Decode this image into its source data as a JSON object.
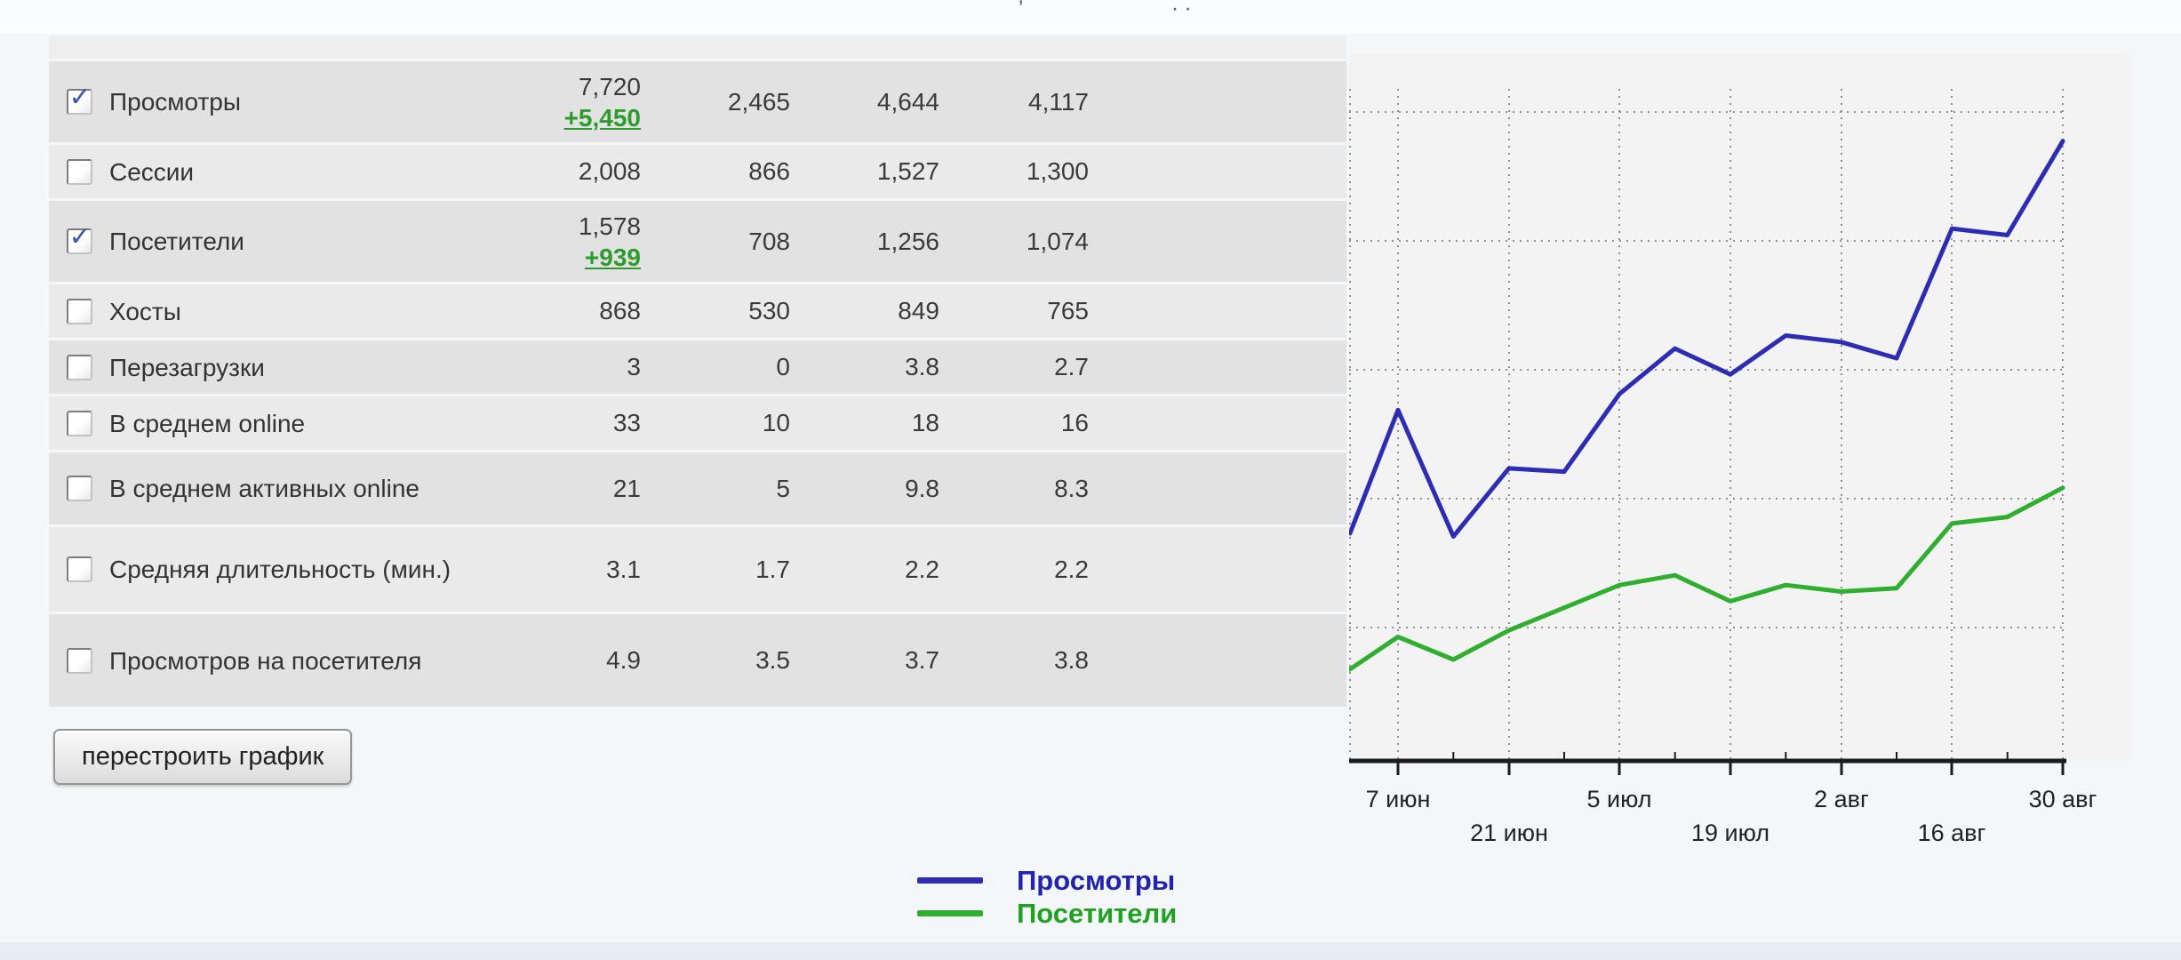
{
  "page": {
    "clipped_header_text_1": "’",
    "clipped_header_text_2": "· ·"
  },
  "ui": {
    "check_glyph": "✓"
  },
  "table": {
    "rows": [
      {
        "label": "Просмотры",
        "checked": true,
        "values": [
          "7,720",
          "2,465",
          "4,644",
          "4,117"
        ],
        "delta": "+5,450"
      },
      {
        "label": "Сессии",
        "checked": false,
        "values": [
          "2,008",
          "866",
          "1,527",
          "1,300"
        ],
        "delta": null
      },
      {
        "label": "Посетители",
        "checked": true,
        "values": [
          "1,578",
          "708",
          "1,256",
          "1,074"
        ],
        "delta": "+939"
      },
      {
        "label": "Хосты",
        "checked": false,
        "values": [
          "868",
          "530",
          "849",
          "765"
        ],
        "delta": null
      },
      {
        "label": "Перезагрузки",
        "checked": false,
        "values": [
          "3",
          "0",
          "3.8",
          "2.7"
        ],
        "delta": null
      },
      {
        "label": "В среднем online",
        "checked": false,
        "values": [
          "33",
          "10",
          "18",
          "16"
        ],
        "delta": null
      },
      {
        "label": "В среднем активных online",
        "checked": false,
        "values": [
          "21",
          "5",
          "9.8",
          "8.3"
        ],
        "delta": null
      },
      {
        "label": "Средняя длительность (мин.)",
        "checked": false,
        "values": [
          "3.1",
          "1.7",
          "2.2",
          "2.2"
        ],
        "delta": null
      },
      {
        "label": "Просмотров на посетителя",
        "checked": false,
        "values": [
          "4.9",
          "3.5",
          "3.7",
          "3.8"
        ],
        "delta": null
      }
    ]
  },
  "button": {
    "label": "перестроить график"
  },
  "legend": {
    "items": [
      {
        "label": "Просмотры",
        "color": "#2d2db4",
        "text_color": "#2323b0"
      },
      {
        "label": "Посетители",
        "color": "#2fae2f",
        "text_color": "#21a121"
      }
    ]
  },
  "chart_data": {
    "type": "line",
    "title": "",
    "xlabel": "",
    "ylabel": "",
    "x_tick_labels": [
      "7 июн",
      "21 июн",
      "5 июл",
      "19 июл",
      "2 авг",
      "16 авг",
      "30 авг"
    ],
    "x_points": [
      "31 мая",
      "7 июн",
      "14 июн",
      "21 июн",
      "28 июн",
      "5 июл",
      "12 июл",
      "19 июл",
      "26 июл",
      "2 авг",
      "9 авг",
      "16 авг",
      "23 авг",
      "30 авг"
    ],
    "y_axis_note": "no y-axis labels shown; values are estimated percent of plot height",
    "grid": "dotted",
    "legend_position": "below table, bottom-center-left of page",
    "series": [
      {
        "name": "Просмотры",
        "color": "#2d2db4",
        "values_pct": [
          35,
          54,
          34.5,
          45,
          44.5,
          56.5,
          63.5,
          59.5,
          65.5,
          64.5,
          62,
          82,
          81,
          95.5
        ]
      },
      {
        "name": "Посетители",
        "color": "#2fae2f",
        "values_pct": [
          14,
          19,
          15.5,
          20,
          23.5,
          27,
          28.5,
          24.5,
          27,
          26,
          26.5,
          36.5,
          37.5,
          42
        ]
      }
    ]
  }
}
